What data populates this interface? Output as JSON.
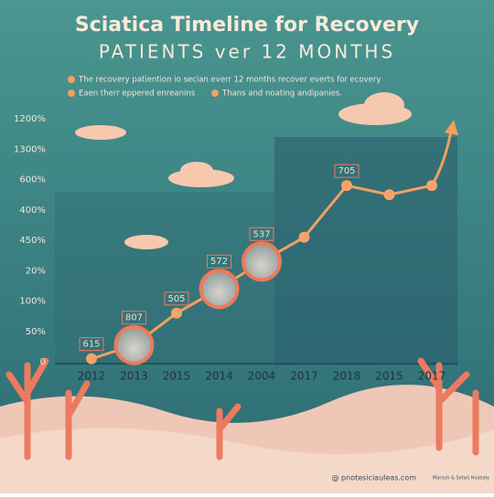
{
  "chart_data": {
    "type": "line",
    "title": "Sciatica Timeline for Recovery",
    "subtitle": "PATIENTS ver 12 MONTHS",
    "legend": [
      "The recovery patiention io secian everr 12 months recover everts for ecovery",
      "Eaen therr eppered enreanins",
      "Thans and noating andipanies."
    ],
    "y_axis_labels": [
      "0",
      "50%",
      "100%",
      "20%",
      "450%",
      "400%",
      "600%",
      "1300%",
      "1200%"
    ],
    "categories": [
      "2012",
      "2013",
      "2015",
      "2014",
      "2004",
      "2017",
      "2018",
      "2015",
      "2017"
    ],
    "values": [
      0.1,
      0.55,
      1.6,
      2.4,
      3.3,
      4.1,
      5.8,
      5.5,
      5.8
    ],
    "ylim": [
      0,
      8
    ],
    "color": "#f2a062",
    "annotations": [
      {
        "index": 0,
        "text": "615"
      },
      {
        "index": 1,
        "text": "807"
      },
      {
        "index": 2,
        "text": "505"
      },
      {
        "index": 3,
        "text": "572"
      },
      {
        "index": 4,
        "text": "537"
      },
      {
        "index": 6,
        "text": "705"
      }
    ],
    "footer": [
      "@ pnotesiciauleas.com",
      "Marsuh & Sotarj Hostiely"
    ]
  }
}
